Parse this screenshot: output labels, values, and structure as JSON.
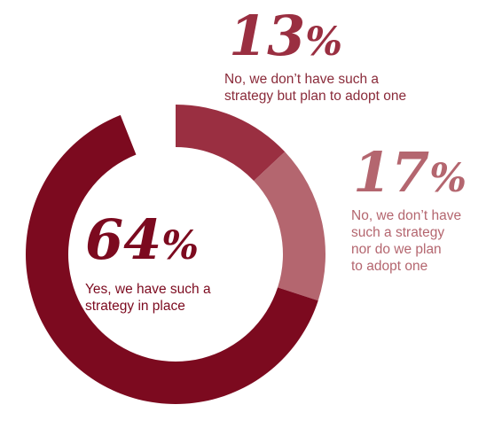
{
  "chart_data": {
    "type": "pie",
    "style": "donut",
    "slices": [
      {
        "name": "Yes, we have such a strategy in place",
        "value": 64,
        "percent_label": "64",
        "color": "#7c0a1f"
      },
      {
        "name": "No, we don’t have such a strategy but plan to adopt one",
        "value": 13,
        "percent_label": "13",
        "color": "#9a2f41"
      },
      {
        "name": "No, we don’t have such a strategy nor do we plan to adopt one",
        "value": 17,
        "percent_label": "17",
        "color": "#b4666f"
      }
    ],
    "percent_symbol": "%",
    "label_lines": {
      "yes": [
        "Yes, we have such a",
        "strategy in place"
      ],
      "plan": [
        "No, we don’t have such a",
        "strategy but plan to adopt one"
      ],
      "no": [
        "No, we don’t have",
        "such a strategy",
        "nor do we plan",
        "to adopt one"
      ]
    }
  }
}
